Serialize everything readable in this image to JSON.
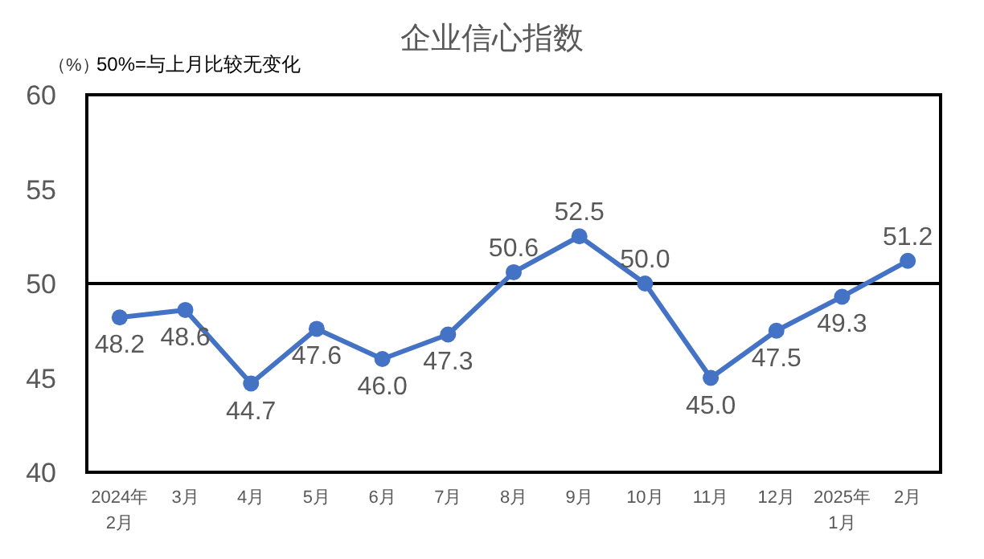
{
  "chart_data": {
    "type": "line",
    "title": "企业信心指数",
    "ylabel": "（%）",
    "annotations": [
      "50%=与上月比较无变化"
    ],
    "categories": [
      "2024年\n2月",
      "3月",
      "4月",
      "5月",
      "6月",
      "7月",
      "8月",
      "9月",
      "10月",
      "11月",
      "12月",
      "2025年\n1月",
      "2月"
    ],
    "series": [
      {
        "color": "#4472c4",
        "values": [
          48.2,
          48.6,
          44.7,
          47.6,
          46.0,
          47.3,
          50.6,
          52.5,
          50.0,
          45.0,
          47.5,
          49.3,
          51.2
        ]
      }
    ],
    "ylim": [
      40,
      60
    ],
    "yticks": [
      40,
      45,
      50,
      55,
      60
    ],
    "ref_lines": [
      {
        "axis": "y",
        "value": 50,
        "color": "#000000"
      }
    ],
    "value_labels": [
      "48.2",
      "48.6",
      "44.7",
      "47.6",
      "46.0",
      "47.3",
      "50.6",
      "52.5",
      "50.0",
      "45.0",
      "47.5",
      "49.3",
      "51.2"
    ],
    "marker": "circle",
    "line_style": "solid",
    "grid": false
  }
}
